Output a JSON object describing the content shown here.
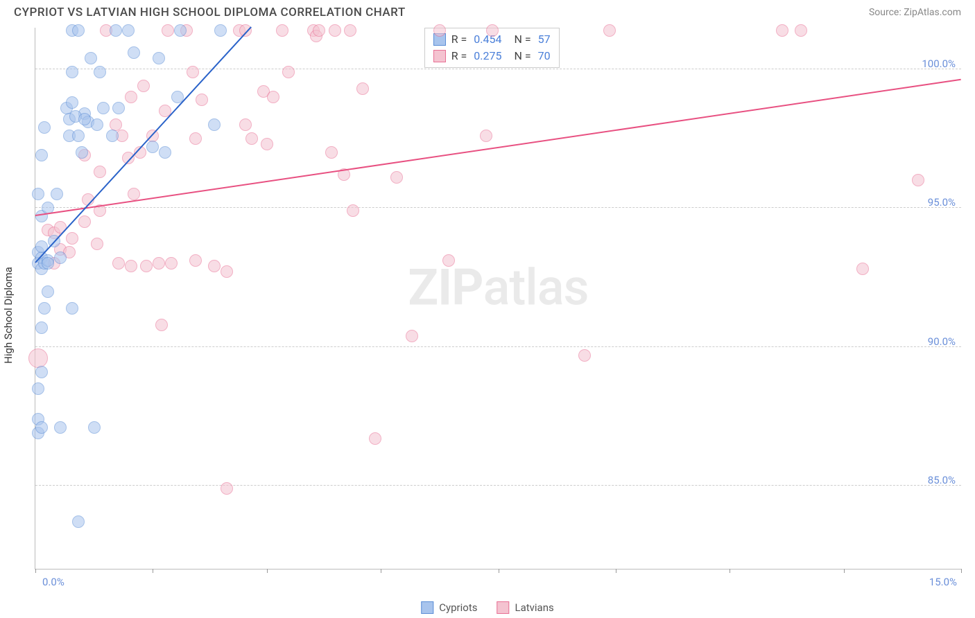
{
  "title": "CYPRIOT VS LATVIAN HIGH SCHOOL DIPLOMA CORRELATION CHART",
  "source": "Source: ZipAtlas.com",
  "watermark_primary": "ZIP",
  "watermark_secondary": "atlas",
  "chart": {
    "type": "scatter",
    "y_label": "High School Diploma",
    "background_color": "#ffffff",
    "grid_color": "#cccccc",
    "grid_style": "dashed",
    "border_color": "#bbbbbb",
    "xlim": [
      0,
      15
    ],
    "ylim": [
      82,
      101.5
    ],
    "x_ticks": [
      0,
      1.9,
      3.75,
      5.6,
      7.5,
      9.4,
      11.25,
      13.1,
      15
    ],
    "x_tick_labels": {
      "0": "0.0%",
      "15": "15.0%"
    },
    "y_grid": [
      85,
      90,
      95,
      100
    ],
    "y_tick_labels": {
      "85": "85.0%",
      "90": "90.0%",
      "95": "95.0%",
      "100": "100.0%"
    },
    "tick_label_color": "#6a8fd9",
    "tick_label_fontsize": 15,
    "axis_label_color": "#333333",
    "axis_label_fontsize": 15,
    "point_radius": 9,
    "point_opacity": 0.55,
    "trend_line_width": 2,
    "series": {
      "cypriots": {
        "label": "Cypriots",
        "color_fill": "#a8c4ed",
        "color_stroke": "#5b8dd6",
        "trend_color": "#2962c9",
        "R": "0.454",
        "N": "57",
        "trend": {
          "x1": 0,
          "y1": 93.0,
          "x2": 3.5,
          "y2": 101.5
        },
        "points": [
          [
            0.05,
            93.0
          ],
          [
            0.05,
            93.4
          ],
          [
            0.1,
            93.2
          ],
          [
            0.1,
            94.7
          ],
          [
            0.05,
            95.5
          ],
          [
            0.1,
            96.9
          ],
          [
            0.15,
            97.9
          ],
          [
            0.05,
            88.5
          ],
          [
            0.1,
            89.1
          ],
          [
            0.05,
            87.4
          ],
          [
            0.1,
            90.7
          ],
          [
            0.15,
            91.4
          ],
          [
            0.2,
            92.0
          ],
          [
            0.1,
            92.8
          ],
          [
            0.15,
            93.0
          ],
          [
            0.2,
            93.1
          ],
          [
            0.1,
            93.6
          ],
          [
            0.2,
            93.0
          ],
          [
            0.3,
            93.8
          ],
          [
            0.2,
            95.0
          ],
          [
            0.35,
            95.5
          ],
          [
            0.4,
            93.2
          ],
          [
            0.6,
            99.9
          ],
          [
            0.6,
            101.4
          ],
          [
            0.6,
            91.4
          ],
          [
            0.7,
            101.4
          ],
          [
            0.55,
            97.6
          ],
          [
            0.75,
            97.0
          ],
          [
            0.55,
            98.2
          ],
          [
            0.8,
            98.4
          ],
          [
            0.85,
            98.1
          ],
          [
            0.9,
            100.4
          ],
          [
            1.05,
            99.9
          ],
          [
            0.65,
            98.3
          ],
          [
            0.7,
            97.6
          ],
          [
            0.8,
            98.2
          ],
          [
            0.5,
            98.6
          ],
          [
            0.6,
            98.8
          ],
          [
            1.1,
            98.6
          ],
          [
            1.35,
            98.6
          ],
          [
            1.0,
            98.0
          ],
          [
            1.25,
            97.6
          ],
          [
            1.3,
            101.4
          ],
          [
            1.5,
            101.4
          ],
          [
            1.9,
            97.2
          ],
          [
            2.1,
            97.0
          ],
          [
            2.35,
            101.4
          ],
          [
            3.0,
            101.4
          ],
          [
            2.9,
            98.0
          ],
          [
            2.0,
            100.4
          ],
          [
            1.6,
            100.6
          ],
          [
            2.3,
            99.0
          ],
          [
            0.95,
            87.1
          ],
          [
            0.4,
            87.1
          ],
          [
            0.7,
            83.7
          ],
          [
            0.05,
            86.9
          ],
          [
            0.1,
            87.1
          ]
        ]
      },
      "latvians": {
        "label": "Latvians",
        "color_fill": "#f4c3d0",
        "color_stroke": "#e86f94",
        "trend_color": "#e85081",
        "R": "0.275",
        "N": "70",
        "trend": {
          "x1": 0,
          "y1": 94.7,
          "x2": 15,
          "y2": 99.6
        },
        "points": [
          [
            0.05,
            89.6,
            14
          ],
          [
            0.2,
            94.2
          ],
          [
            0.3,
            94.1
          ],
          [
            0.4,
            94.3
          ],
          [
            0.6,
            93.9
          ],
          [
            0.3,
            93.0
          ],
          [
            0.4,
            93.5
          ],
          [
            0.55,
            93.4
          ],
          [
            0.8,
            94.5
          ],
          [
            0.85,
            95.3
          ],
          [
            1.05,
            94.9
          ],
          [
            1.0,
            93.7
          ],
          [
            1.3,
            98.0
          ],
          [
            1.4,
            97.6
          ],
          [
            1.5,
            96.8
          ],
          [
            1.7,
            97.0
          ],
          [
            1.55,
            99.0
          ],
          [
            1.75,
            99.4
          ],
          [
            1.6,
            95.5
          ],
          [
            1.35,
            93.0
          ],
          [
            1.55,
            92.9
          ],
          [
            1.8,
            92.9
          ],
          [
            2.0,
            93.0
          ],
          [
            2.2,
            93.0
          ],
          [
            2.05,
            90.8
          ],
          [
            1.9,
            97.6
          ],
          [
            2.1,
            98.5
          ],
          [
            2.15,
            101.4
          ],
          [
            2.45,
            101.4
          ],
          [
            2.55,
            99.9
          ],
          [
            2.7,
            98.9
          ],
          [
            2.6,
            97.5
          ],
          [
            2.6,
            93.1
          ],
          [
            2.9,
            92.9
          ],
          [
            3.1,
            92.7
          ],
          [
            3.1,
            84.9
          ],
          [
            3.3,
            101.4
          ],
          [
            3.4,
            101.4
          ],
          [
            3.4,
            98.0
          ],
          [
            3.5,
            97.5
          ],
          [
            3.7,
            99.2
          ],
          [
            3.75,
            97.3
          ],
          [
            3.85,
            99.0
          ],
          [
            4.1,
            99.9
          ],
          [
            4.0,
            101.4
          ],
          [
            4.5,
            101.4
          ],
          [
            4.55,
            101.2
          ],
          [
            4.6,
            101.4
          ],
          [
            4.85,
            101.4
          ],
          [
            5.1,
            101.4
          ],
          [
            5.0,
            96.2
          ],
          [
            4.8,
            97.0
          ],
          [
            5.15,
            94.9
          ],
          [
            5.3,
            99.3
          ],
          [
            5.5,
            86.7
          ],
          [
            5.85,
            96.1
          ],
          [
            6.1,
            90.4
          ],
          [
            6.55,
            101.4
          ],
          [
            6.7,
            93.1
          ],
          [
            7.3,
            97.6
          ],
          [
            7.4,
            101.4
          ],
          [
            8.9,
            89.7
          ],
          [
            9.3,
            101.4
          ],
          [
            12.1,
            101.4
          ],
          [
            12.4,
            101.4
          ],
          [
            13.4,
            92.8
          ],
          [
            14.3,
            96.0
          ],
          [
            0.8,
            96.9
          ],
          [
            1.05,
            96.3
          ],
          [
            1.15,
            101.4
          ]
        ]
      }
    }
  },
  "legend_top": {
    "R_label": "R =",
    "N_label": "N ="
  }
}
